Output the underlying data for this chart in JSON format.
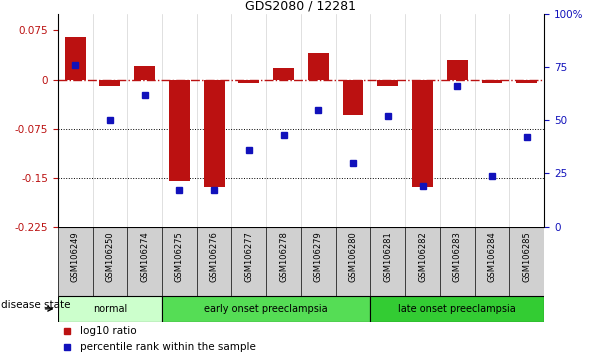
{
  "title": "GDS2080 / 12281",
  "samples": [
    "GSM106249",
    "GSM106250",
    "GSM106274",
    "GSM106275",
    "GSM106276",
    "GSM106277",
    "GSM106278",
    "GSM106279",
    "GSM106280",
    "GSM106281",
    "GSM106282",
    "GSM106283",
    "GSM106284",
    "GSM106285"
  ],
  "log10_ratio": [
    0.065,
    -0.01,
    0.02,
    -0.155,
    -0.165,
    -0.005,
    0.018,
    0.04,
    -0.055,
    -0.01,
    -0.165,
    0.03,
    -0.005,
    -0.005
  ],
  "percentile_rank": [
    76,
    50,
    62,
    17,
    17,
    36,
    43,
    55,
    30,
    52,
    19,
    66,
    24,
    42
  ],
  "bar_color": "#bb1111",
  "dot_color": "#1111bb",
  "groups": [
    {
      "label": "normal",
      "start": 0,
      "end": 3,
      "color": "#ccffcc"
    },
    {
      "label": "early onset preeclampsia",
      "start": 3,
      "end": 9,
      "color": "#55dd55"
    },
    {
      "label": "late onset preeclampsia",
      "start": 9,
      "end": 14,
      "color": "#33cc33"
    }
  ],
  "ylim_left": [
    -0.225,
    0.1
  ],
  "ylim_right": [
    0,
    100
  ],
  "yticks_left": [
    -0.225,
    -0.15,
    -0.075,
    0,
    0.075
  ],
  "yticks_right": [
    0,
    25,
    50,
    75,
    100
  ],
  "dotted_lines": [
    -0.075,
    -0.15
  ],
  "background_color": "#ffffff",
  "disease_state_label": "disease state"
}
